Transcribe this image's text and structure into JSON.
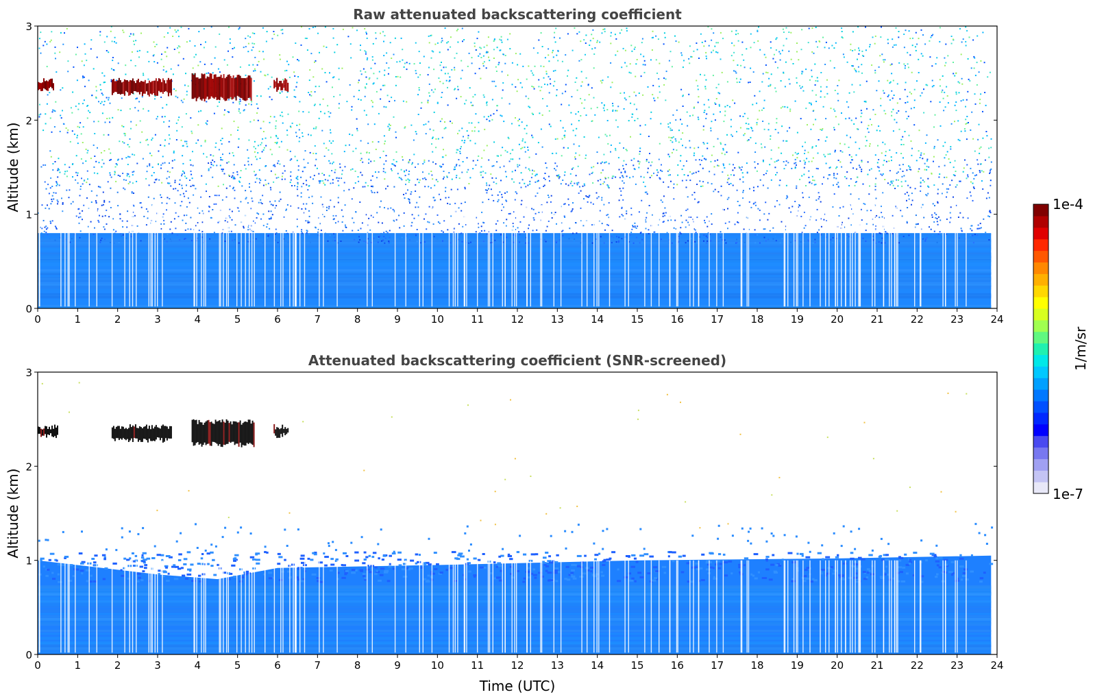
{
  "chart_data": [
    {
      "type": "heatmap",
      "title": "Raw attenuated backscattering coefficient",
      "xlabel": "",
      "ylabel": "Altitude (km)",
      "xlim": [
        0,
        24
      ],
      "ylim": [
        0,
        3
      ],
      "xticks": [
        "0",
        "1",
        "2",
        "3",
        "4",
        "5",
        "6",
        "7",
        "8",
        "9",
        "10",
        "11",
        "12",
        "13",
        "14",
        "15",
        "16",
        "17",
        "18",
        "19",
        "20",
        "21",
        "22",
        "23",
        "24"
      ],
      "yticks": [
        "0",
        "1",
        "2",
        "3"
      ],
      "data_end_hour": 23.85,
      "layers": [
        {
          "name": "dense aerosol layer",
          "altitude_km": [
            0.0,
            0.8
          ],
          "level": "low-moderate (blue)"
        },
        {
          "name": "noisy transition",
          "altitude_km": [
            0.8,
            1.5
          ],
          "level": "blue speckle"
        },
        {
          "name": "noise",
          "altitude_km": [
            1.5,
            3.0
          ],
          "level": "sparse cyan/green speckle"
        }
      ],
      "cloud_segments": [
        {
          "start_hour": 0.0,
          "end_hour": 0.4,
          "altitude_km": [
            2.3,
            2.45
          ]
        },
        {
          "start_hour": 1.85,
          "end_hour": 3.35,
          "altitude_km": [
            2.25,
            2.45
          ]
        },
        {
          "start_hour": 3.85,
          "end_hour": 5.35,
          "altitude_km": [
            2.2,
            2.5
          ]
        },
        {
          "start_hour": 5.9,
          "end_hour": 6.25,
          "altitude_km": [
            2.3,
            2.45
          ]
        }
      ],
      "grid": false
    },
    {
      "type": "heatmap",
      "title": "Attenuated backscattering coefficient (SNR-screened)",
      "xlabel": "Time (UTC)",
      "ylabel": "Altitude (km)",
      "xlim": [
        0,
        24
      ],
      "ylim": [
        0,
        3
      ],
      "xticks": [
        "0",
        "1",
        "2",
        "3",
        "4",
        "5",
        "6",
        "7",
        "8",
        "9",
        "10",
        "11",
        "12",
        "13",
        "14",
        "15",
        "16",
        "17",
        "18",
        "19",
        "20",
        "21",
        "22",
        "23",
        "24"
      ],
      "yticks": [
        "0",
        "1",
        "2",
        "3"
      ],
      "data_end_hour": 23.85,
      "screened_top_km": [
        {
          "hour": 0,
          "top": 1.0
        },
        {
          "hour": 3,
          "top": 0.85
        },
        {
          "hour": 4.5,
          "top": 0.8
        },
        {
          "hour": 6,
          "top": 0.92
        },
        {
          "hour": 10,
          "top": 0.95
        },
        {
          "hour": 15,
          "top": 1.0
        },
        {
          "hour": 20,
          "top": 1.02
        },
        {
          "hour": 23.85,
          "top": 1.05
        }
      ],
      "cloud_segments": [
        {
          "start_hour": 0.0,
          "end_hour": 0.5,
          "altitude_km": [
            2.3,
            2.45
          ]
        },
        {
          "start_hour": 1.85,
          "end_hour": 3.35,
          "altitude_km": [
            2.25,
            2.45
          ]
        },
        {
          "start_hour": 3.85,
          "end_hour": 5.4,
          "altitude_km": [
            2.2,
            2.5
          ]
        },
        {
          "start_hour": 5.9,
          "end_hour": 6.25,
          "altitude_km": [
            2.3,
            2.45
          ]
        }
      ],
      "grid": false
    }
  ],
  "colorbar": {
    "label": "1/m/sr",
    "max_label": "1e-4",
    "min_label": "1e-7",
    "colors": [
      "#e8e8f8",
      "#c4c4f4",
      "#a0a0f2",
      "#7878f0",
      "#4a4af0",
      "#0000ff",
      "#0028ff",
      "#0050ff",
      "#0078ff",
      "#00a0ff",
      "#00c8ff",
      "#00e8e8",
      "#20f0b0",
      "#60f880",
      "#a0ff50",
      "#d8ff20",
      "#ffff00",
      "#ffd800",
      "#ffb000",
      "#ff8800",
      "#ff5800",
      "#ff2800",
      "#e00000",
      "#b00000",
      "#800000"
    ]
  }
}
